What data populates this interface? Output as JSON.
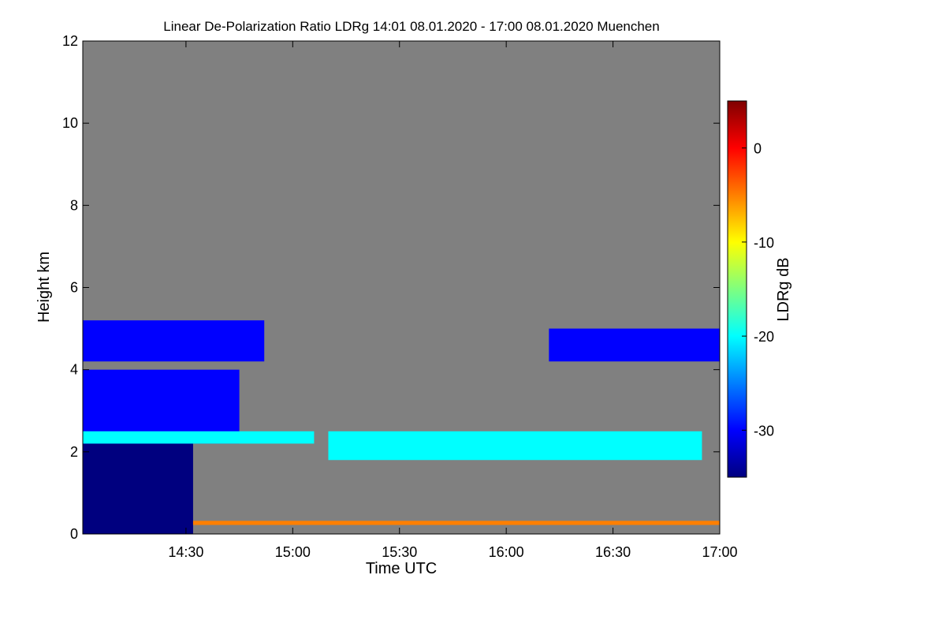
{
  "chart_data": {
    "type": "heatmap",
    "title": "Linear De-Polarization Ratio LDRg   14:01 08.01.2020 - 17:00 08.01.2020 Muenchen",
    "xlabel": "Time UTC",
    "ylabel": "Height km",
    "colorbar_label": "LDRg dB",
    "xlim": [
      "14:01",
      "17:00"
    ],
    "ylim": [
      0,
      12
    ],
    "x_ticks": [
      "14:30",
      "15:00",
      "15:30",
      "16:00",
      "16:30",
      "17:00"
    ],
    "y_ticks": [
      0,
      2,
      4,
      6,
      8,
      10,
      12
    ],
    "colorbar_range": [
      -35,
      5
    ],
    "colorbar_ticks": [
      0,
      -10,
      -20,
      -30
    ],
    "colormap": [
      "#00007f",
      "#0000ff",
      "#007fff",
      "#00ffff",
      "#7fff7f",
      "#ffff00",
      "#ff7f00",
      "#ff0000",
      "#7f0000"
    ],
    "background_color": "#808080",
    "features": [
      {
        "name": "boundary-layer",
        "t_start": "14:01",
        "t_end": "14:32",
        "h_bottom": 0,
        "h_top": 2.2,
        "ldr_db": -33
      },
      {
        "name": "mid-level-cloud",
        "t_start": "14:01",
        "t_end": "14:45",
        "h_bottom": 2.2,
        "h_top": 4.0,
        "ldr_db": -31
      },
      {
        "name": "upper-layer-left",
        "t_start": "14:01",
        "t_end": "14:52",
        "h_bottom": 4.2,
        "h_top": 5.2,
        "ldr_db": -31
      },
      {
        "name": "cloud-top-layer",
        "t_start": "14:01",
        "t_end": "15:06",
        "h_bottom": 2.2,
        "h_top": 2.5,
        "ldr_db": -22
      },
      {
        "name": "mid-layer-band",
        "t_start": "15:10",
        "t_end": "16:55",
        "h_bottom": 1.8,
        "h_top": 2.5,
        "ldr_db": -22
      },
      {
        "name": "upper-layer-right",
        "t_start": "16:12",
        "t_end": "17:00",
        "h_bottom": 4.2,
        "h_top": 5.0,
        "ldr_db": -31
      },
      {
        "name": "surface-clutter",
        "t_start": "14:32",
        "t_end": "17:00",
        "h_bottom": 0.22,
        "h_top": 0.32,
        "ldr_db": -3
      }
    ]
  }
}
